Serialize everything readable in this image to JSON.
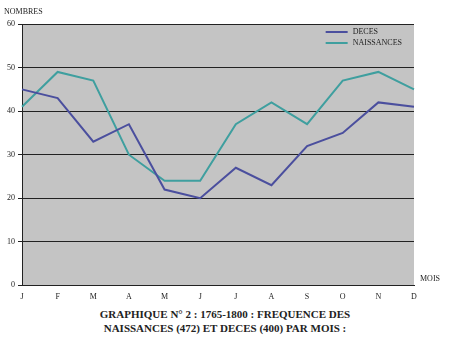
{
  "chart_data": {
    "type": "line",
    "title": "GRAPHIQUE N° 2 : 1765-1800 : FREQUENCE DES NAISSANCES (472) ET DECES (400) PAR MOIS :",
    "x_label": "MOIS",
    "y_label": "NOMBRES",
    "categories": [
      "J",
      "F",
      "M",
      "A",
      "M",
      "J",
      "J",
      "A",
      "S",
      "O",
      "N",
      "D"
    ],
    "series": [
      {
        "name": "DECES",
        "color": "#4b4f9e",
        "values": [
          45,
          43,
          33,
          37,
          22,
          20,
          27,
          23,
          32,
          35,
          42,
          41
        ]
      },
      {
        "name": "NAISSANCES",
        "color": "#3f9f9f",
        "values": [
          41,
          49,
          47,
          30,
          24,
          24,
          37,
          42,
          37,
          47,
          49,
          45
        ]
      }
    ],
    "ylim": [
      0,
      60
    ],
    "yticks": [
      0,
      10,
      20,
      30,
      40,
      50,
      60
    ],
    "grid": true,
    "legend": "upper right"
  }
}
